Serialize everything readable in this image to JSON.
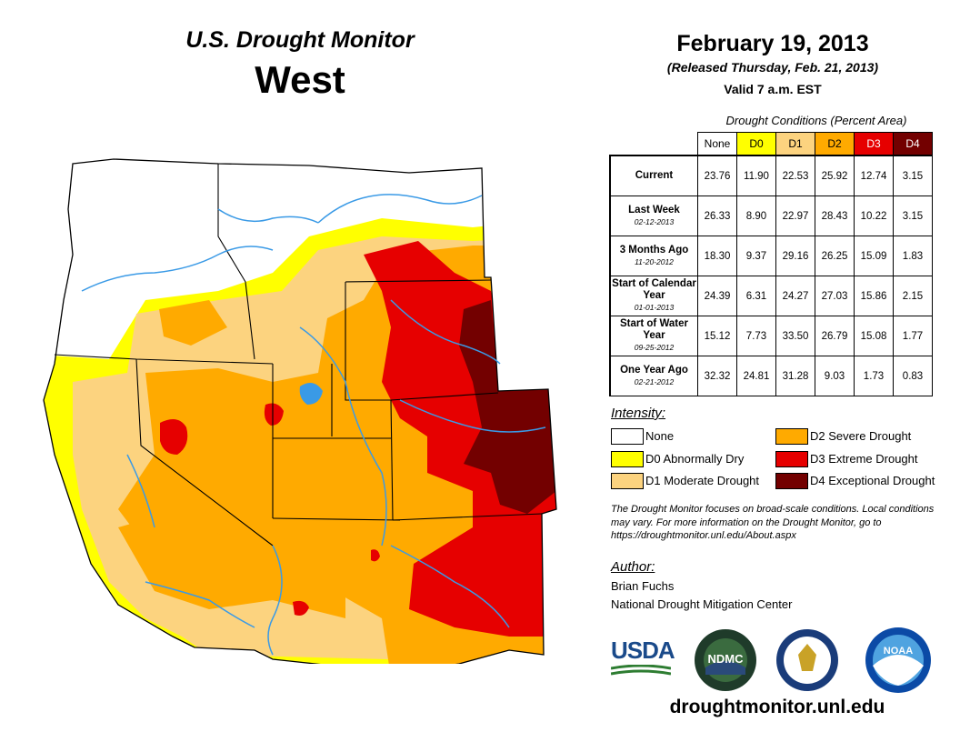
{
  "header": {
    "left_title": "U.S. Drought Monitor",
    "region": "West",
    "date": "February 19, 2013",
    "released": "(Released Thursday, Feb. 21, 2013)",
    "valid": "Valid 7 a.m. EST"
  },
  "table": {
    "caption": "Drought Conditions (Percent Area)",
    "columns": [
      "None",
      "D0",
      "D1",
      "D2",
      "D3",
      "D4"
    ],
    "column_colors": [
      "#ffffff",
      "#ffff00",
      "#fcd37f",
      "#ffaa00",
      "#e60000",
      "#730000"
    ],
    "rows": [
      {
        "label": "Current",
        "date": "",
        "values": [
          "23.76",
          "11.90",
          "22.53",
          "25.92",
          "12.74",
          "3.15"
        ]
      },
      {
        "label": "Last Week",
        "date": "02-12-2013",
        "values": [
          "26.33",
          "8.90",
          "22.97",
          "28.43",
          "10.22",
          "3.15"
        ]
      },
      {
        "label": "3 Months Ago",
        "date": "11-20-2012",
        "values": [
          "18.30",
          "9.37",
          "29.16",
          "26.25",
          "15.09",
          "1.83"
        ]
      },
      {
        "label": "Start of Calendar Year",
        "date": "01-01-2013",
        "values": [
          "24.39",
          "6.31",
          "24.27",
          "27.03",
          "15.86",
          "2.15"
        ]
      },
      {
        "label": "Start of Water Year",
        "date": "09-25-2012",
        "values": [
          "15.12",
          "7.73",
          "33.50",
          "26.79",
          "15.08",
          "1.77"
        ]
      },
      {
        "label": "One Year Ago",
        "date": "02-21-2012",
        "values": [
          "32.32",
          "24.81",
          "31.28",
          "9.03",
          "1.73",
          "0.83"
        ]
      }
    ]
  },
  "legend": {
    "title": "Intensity:",
    "items": [
      {
        "label": "None",
        "color": "#ffffff"
      },
      {
        "label": "D0 Abnormally Dry",
        "color": "#ffff00"
      },
      {
        "label": "D1 Moderate Drought",
        "color": "#fcd37f"
      },
      {
        "label": "D2 Severe Drought",
        "color": "#ffaa00"
      },
      {
        "label": "D3 Extreme Drought",
        "color": "#e60000"
      },
      {
        "label": "D4 Exceptional Drought",
        "color": "#730000"
      }
    ]
  },
  "note": "The Drought Monitor focuses on broad-scale conditions. Local conditions may vary. For more information on the Drought Monitor, go to https://droughtmonitor.unl.edu/About.aspx",
  "author": {
    "title": "Author:",
    "name": "Brian Fuchs",
    "org": "National Drought Mitigation Center"
  },
  "logos": {
    "usda": "USDA",
    "ndmc": "NDMC",
    "noaa": "NOAA"
  },
  "url": "droughtmonitor.unl.edu"
}
